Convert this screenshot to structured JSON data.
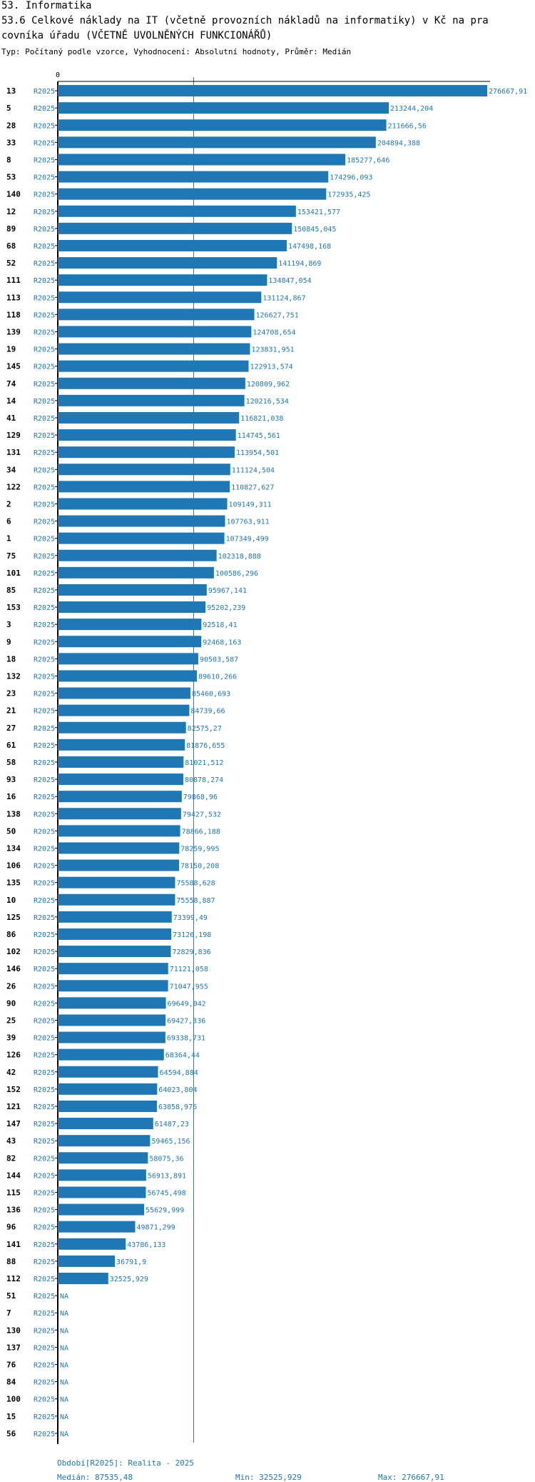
{
  "header": {
    "section": "53. Informatika",
    "title_line1": "53.6 Celkové náklady na IT (včetně provozních nákladů na informatiky) v Kč na pra",
    "title_line2": "covníka úřadu (VČETNĚ UVOLNĚNÝCH FUNKCIONÁŘŮ)",
    "subtitle": "Typ: Počítaný podle vzorce, Vyhodnocení: Absolutní hodnoty, Průměr: Medián"
  },
  "chart_data": {
    "type": "bar",
    "orientation": "horizontal",
    "axis_zero_label": "0",
    "period_label": "R2025",
    "na_label": "NA",
    "median": 87535.48,
    "xlim": [
      0,
      276667.91
    ],
    "categories": [
      "13",
      "5",
      "28",
      "33",
      "8",
      "53",
      "140",
      "12",
      "89",
      "68",
      "52",
      "111",
      "113",
      "118",
      "139",
      "19",
      "145",
      "74",
      "14",
      "41",
      "129",
      "131",
      "34",
      "122",
      "2",
      "6",
      "1",
      "75",
      "101",
      "85",
      "153",
      "3",
      "9",
      "18",
      "132",
      "23",
      "21",
      "27",
      "61",
      "58",
      "93",
      "16",
      "138",
      "50",
      "134",
      "106",
      "135",
      "10",
      "125",
      "86",
      "102",
      "146",
      "26",
      "90",
      "25",
      "39",
      "126",
      "42",
      "152",
      "121",
      "147",
      "43",
      "82",
      "144",
      "115",
      "136",
      "96",
      "141",
      "88",
      "112",
      "51",
      "7",
      "130",
      "137",
      "76",
      "84",
      "100",
      "15",
      "56"
    ],
    "values": [
      276667.91,
      213244.204,
      211666.56,
      204894.388,
      185277.646,
      174296.093,
      172935.425,
      153421.577,
      150845.045,
      147498.168,
      141194.869,
      134847.054,
      131124.867,
      126627.751,
      124708.654,
      123831.951,
      122913.574,
      120809.962,
      120216.534,
      116821.038,
      114745.561,
      113954.501,
      111124.504,
      110827.627,
      109149.311,
      107763.911,
      107349.499,
      102318.888,
      100586.296,
      95967.141,
      95202.239,
      92518.41,
      92468.163,
      90503.587,
      89610.266,
      85460.693,
      84739.66,
      82575.27,
      81876.655,
      81021.512,
      80878.274,
      79868.96,
      79427.532,
      78866.188,
      78259.995,
      78150.208,
      75588.628,
      75558.887,
      73399.49,
      73126.198,
      72829.836,
      71121.058,
      71047.955,
      69649.042,
      69427.336,
      69338.731,
      68364.44,
      64594.884,
      64023.804,
      63858.976,
      61487.23,
      59465.156,
      58075.36,
      56913.891,
      56745.498,
      55629.999,
      49871.299,
      43786.133,
      36791.9,
      32525.929,
      null,
      null,
      null,
      null,
      null,
      null,
      null,
      null,
      null
    ],
    "value_labels": [
      "276667,91",
      "213244,204",
      "211666,56",
      "204894,388",
      "185277,646",
      "174296,093",
      "172935,425",
      "153421,577",
      "150845,045",
      "147498,168",
      "141194,869",
      "134847,054",
      "131124,867",
      "126627,751",
      "124708,654",
      "123831,951",
      "122913,574",
      "120809,962",
      "120216,534",
      "116821,038",
      "114745,561",
      "113954,501",
      "111124,504",
      "110827,627",
      "109149,311",
      "107763,911",
      "107349,499",
      "102318,888",
      "100586,296",
      "95967,141",
      "95202,239",
      "92518,41",
      "92468,163",
      "90503,587",
      "89610,266",
      "85460,693",
      "84739,66",
      "82575,27",
      "81876,655",
      "81021,512",
      "80878,274",
      "79868,96",
      "79427,532",
      "78866,188",
      "78259,995",
      "78150,208",
      "75588,628",
      "75558,887",
      "73399,49",
      "73126,198",
      "72829,836",
      "71121,058",
      "71047,955",
      "69649,042",
      "69427,336",
      "69338,731",
      "68364,44",
      "64594,884",
      "64023,804",
      "63858,976",
      "61487,23",
      "59465,156",
      "58075,36",
      "56913,891",
      "56745,498",
      "55629,999",
      "49871,299",
      "43786,133",
      "36791,9",
      "32525,929",
      "NA",
      "NA",
      "NA",
      "NA",
      "NA",
      "NA",
      "NA",
      "NA",
      "NA"
    ],
    "colors": {
      "bar": "#1f77b4",
      "label": "#1f77b4",
      "axis": "#000000",
      "median_line": "#1f77b4"
    }
  },
  "footer": {
    "period": "Období[R2025]: Realita - 2025",
    "median": "Medián: 87535,48",
    "min": "Min: 32525,929",
    "max": "Max: 276667,91"
  }
}
